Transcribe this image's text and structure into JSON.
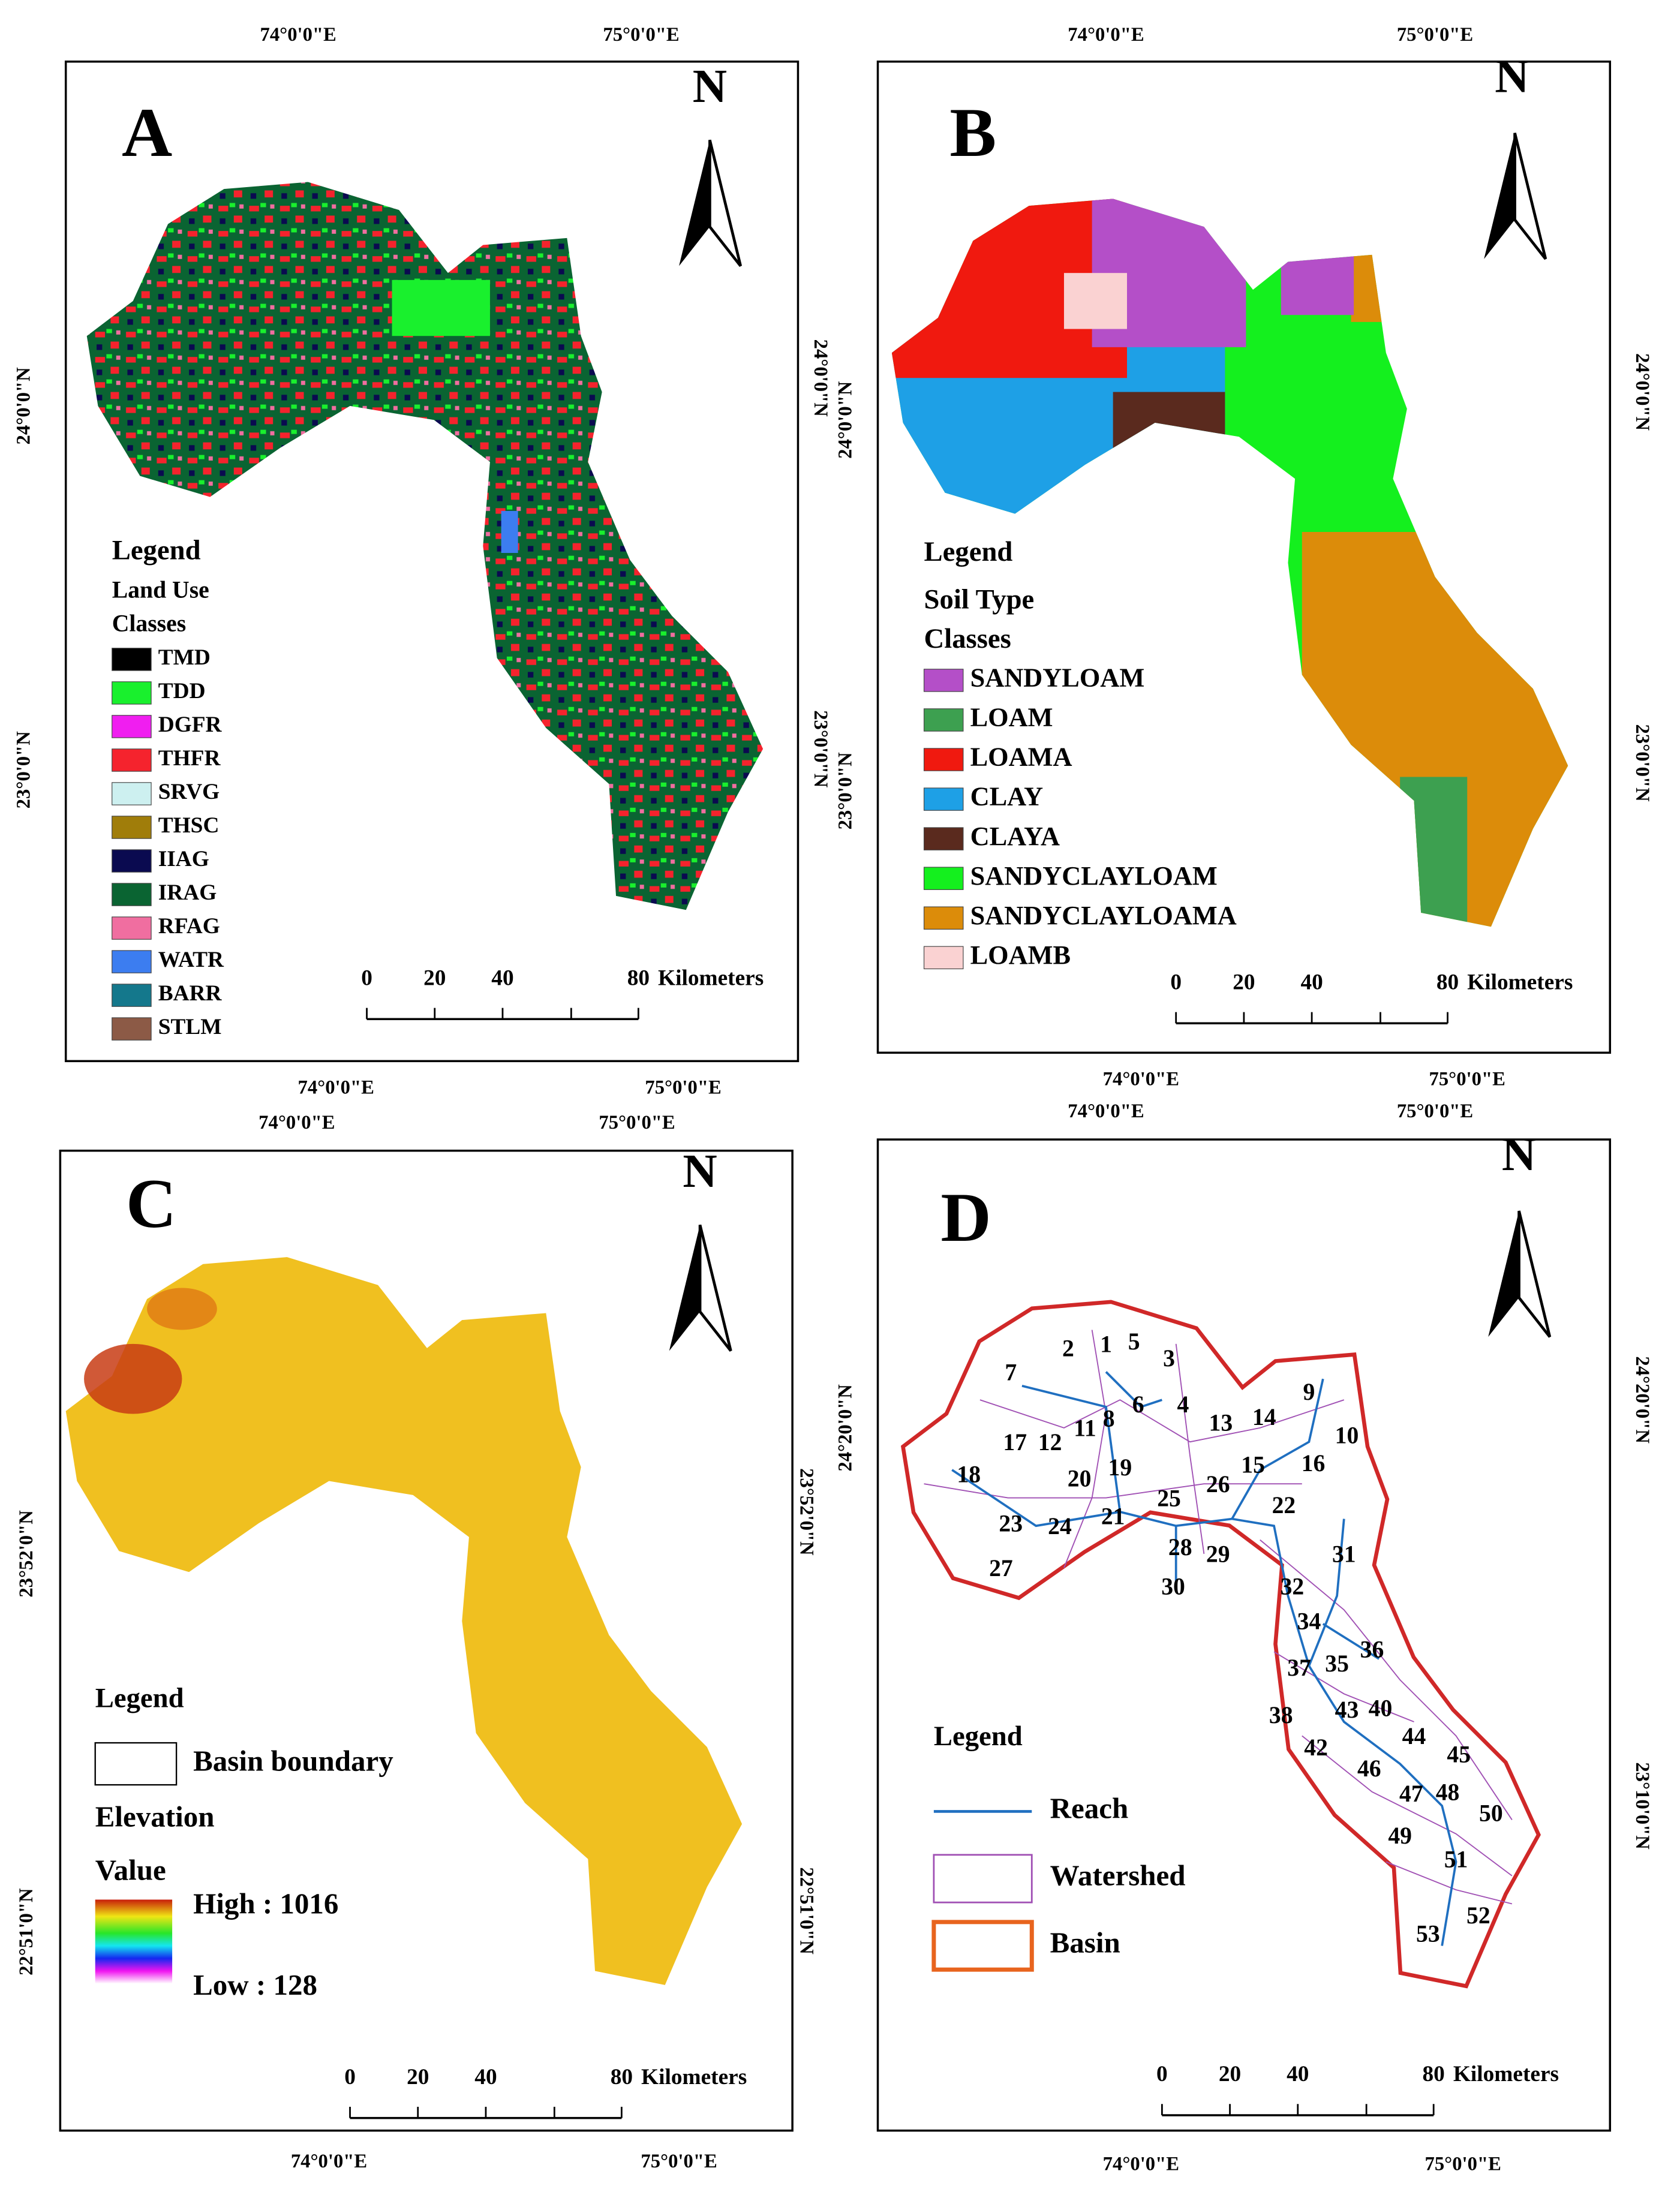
{
  "panels": [
    {
      "letter": "A",
      "north": "N",
      "coords": {
        "top": [
          "74°0'0\"E",
          "75°0'0\"E"
        ],
        "bottom": [
          "74°0'0\"E",
          "75°0'0\"E"
        ],
        "left": [
          "24°0'0\"N",
          "23°0'0\"N"
        ],
        "right": [
          "24°0'0\"N",
          "23°0'0\"N"
        ]
      },
      "legend": {
        "title": "Legend",
        "subtitle": "Land Use",
        "subtitle2": "Classes",
        "items": [
          {
            "label": "TMD",
            "color": "#000000"
          },
          {
            "label": "TDD",
            "color": "#19f02d"
          },
          {
            "label": "DGFR",
            "color": "#f01ef0"
          },
          {
            "label": "THFR",
            "color": "#f5232d"
          },
          {
            "label": "SRVG",
            "color": "#cdf0f0"
          },
          {
            "label": "THSC",
            "color": "#a07d0a"
          },
          {
            "label": "IIAG",
            "color": "#0a0a50"
          },
          {
            "label": "IRAG",
            "color": "#0a6432"
          },
          {
            "label": "RFAG",
            "color": "#f06ea0"
          },
          {
            "label": "WATR",
            "color": "#3c7df0"
          },
          {
            "label": "BARR",
            "color": "#14788c"
          },
          {
            "label": "STLM",
            "color": "#8c5a46"
          }
        ]
      },
      "scale": {
        "ticks": [
          0,
          20,
          40,
          80
        ],
        "unit": "Kilometers"
      }
    },
    {
      "letter": "B",
      "north": "N",
      "coords": {
        "top": [
          "74°0'0\"E",
          "75°0'0\"E"
        ],
        "bottom": [
          "74°0'0\"E",
          "75°0'0\"E"
        ],
        "left": [
          "24°0'0\"N",
          "23°0'0\"N"
        ],
        "right": [
          "24°0'0\"N",
          "23°0'0\"N"
        ]
      },
      "legend": {
        "title": "Legend",
        "subtitle": "Soil Type",
        "subtitle2": "Classes",
        "items": [
          {
            "label": "SANDYLOAM",
            "color": "#b44fc8"
          },
          {
            "label": "LOAM",
            "color": "#3da050"
          },
          {
            "label": "LOAMA",
            "color": "#f0190f"
          },
          {
            "label": "CLAY",
            "color": "#1ea0e6"
          },
          {
            "label": "CLAYA",
            "color": "#5a2a1e"
          },
          {
            "label": "SANDYCLAYLOAM",
            "color": "#14f01e"
          },
          {
            "label": "SANDYCLAYLOAMA",
            "color": "#dc8c0a"
          },
          {
            "label": "LOAMB",
            "color": "#fad2d2"
          }
        ]
      },
      "scale": {
        "ticks": [
          0,
          20,
          40,
          80
        ],
        "unit": "Kilometers"
      }
    },
    {
      "letter": "C",
      "north": "N",
      "coords": {
        "top": [
          "74°0'0\"E",
          "75°0'0\"E"
        ],
        "bottom": [
          "74°0'0\"E",
          "75°0'0\"E"
        ],
        "left": [
          "23°52'0\"N",
          "22°51'0\"N"
        ],
        "right": [
          "23°52'0\"N",
          "22°51'0\"N"
        ]
      },
      "legend": {
        "title": "Legend",
        "items": [
          {
            "label": "Basin boundary"
          }
        ],
        "section": "Elevation",
        "field": "Value",
        "high": "High : 1016",
        "low": "Low : 128"
      },
      "scale": {
        "ticks": [
          0,
          20,
          40,
          80
        ],
        "unit": "Kilometers"
      }
    },
    {
      "letter": "D",
      "north": "N",
      "coords": {
        "top": [
          "74°0'0\"E",
          "75°0'0\"E"
        ],
        "bottom": [
          "74°0'0\"E",
          "75°0'0\"E"
        ],
        "left": [
          "24°20'0\"N"
        ],
        "right": [
          "24°20'0\"N",
          "23°10'0\"N"
        ]
      },
      "legend": {
        "title": "Legend",
        "items": [
          {
            "label": "Reach",
            "color": "#1f6fc0"
          },
          {
            "label": "Watershed",
            "color": "#a050b4"
          },
          {
            "label": "Basin",
            "color": "#e8641e"
          }
        ]
      },
      "watershed_labels": [
        "1",
        "2",
        "3",
        "4",
        "5",
        "6",
        "7",
        "8",
        "9",
        "10",
        "11",
        "12",
        "13",
        "14",
        "15",
        "16",
        "17",
        "18",
        "19",
        "20",
        "21",
        "22",
        "23",
        "24",
        "25",
        "26",
        "27",
        "28",
        "29",
        "30",
        "31",
        "32",
        "34",
        "35",
        "36",
        "37",
        "38",
        "40",
        "42",
        "43",
        "44",
        "45",
        "46",
        "47",
        "48",
        "49",
        "50",
        "51",
        "52",
        "53"
      ],
      "scale": {
        "ticks": [
          0,
          20,
          40,
          80
        ],
        "unit": "Kilometers"
      }
    }
  ]
}
